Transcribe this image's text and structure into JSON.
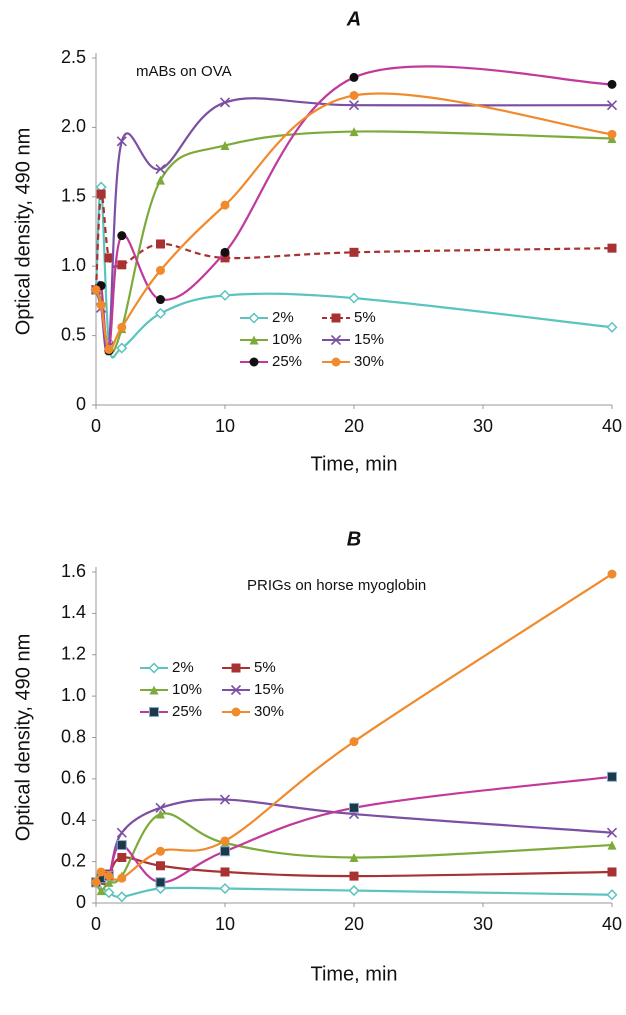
{
  "chart_data": [
    {
      "type": "line",
      "title": "A",
      "annotation": "mABs on OVA",
      "x_label": "Time, min",
      "y_label": "Optical density, 490 nm",
      "x": [
        0,
        0.4,
        1,
        2,
        5,
        10,
        20,
        40
      ],
      "xlim": [
        0,
        40
      ],
      "xticks": [
        0,
        10,
        20,
        30,
        40
      ],
      "ylim": [
        0,
        2.5
      ],
      "yticks": [
        0,
        0.5,
        {
          "value": 1,
          "label": "1.0"
        },
        1.5,
        {
          "value": 2,
          "label": "2.0"
        },
        2.5
      ],
      "series": [
        {
          "name": "2%",
          "color": "#5bc4bf",
          "marker": "diamond",
          "values": [
            0.83,
            1.57,
            0.45,
            0.41,
            0.66,
            0.79,
            0.77,
            0.56
          ]
        },
        {
          "name": "5%",
          "color": "#a83232",
          "marker": "square",
          "dash": true,
          "values": [
            0.83,
            1.52,
            1.06,
            1.01,
            1.16,
            1.06,
            1.1,
            1.13
          ]
        },
        {
          "name": "10%",
          "color": "#7daa3a",
          "marker": "triangle",
          "values": [
            0.83,
            0.75,
            0.4,
            0.55,
            1.62,
            1.87,
            1.97,
            1.92
          ]
        },
        {
          "name": "15%",
          "color": "#7b4fa3",
          "marker": "x",
          "values": [
            0.83,
            0.7,
            0.42,
            1.9,
            1.7,
            2.18,
            2.16,
            2.16
          ]
        },
        {
          "name": "25%",
          "color": "#c0399b",
          "marker": "circle-black",
          "values": [
            0.83,
            0.86,
            0.39,
            1.22,
            0.76,
            1.1,
            2.36,
            2.31
          ]
        },
        {
          "name": "30%",
          "color": "#f08a2c",
          "marker": "circle",
          "values": [
            0.83,
            0.72,
            0.4,
            0.56,
            0.97,
            1.44,
            2.23,
            1.95
          ]
        }
      ]
    },
    {
      "type": "line",
      "title": "B",
      "annotation": "PRIGs on horse myoglobin",
      "x_label": "Time, min",
      "y_label": "Optical density, 490 nm",
      "x": [
        0,
        0.4,
        1,
        2,
        5,
        10,
        20,
        40
      ],
      "xlim": [
        0,
        40
      ],
      "xticks": [
        0,
        10,
        20,
        30,
        40
      ],
      "ylim": [
        0,
        1.6
      ],
      "yticks": [
        0,
        0.2,
        0.4,
        0.6,
        0.8,
        {
          "value": 1,
          "label": "1.0"
        },
        1.2,
        1.4,
        1.6
      ],
      "series": [
        {
          "name": "2%",
          "color": "#5bc4bf",
          "marker": "diamond",
          "values": [
            0.1,
            0.08,
            0.05,
            0.03,
            0.07,
            0.07,
            0.06,
            0.04
          ]
        },
        {
          "name": "5%",
          "color": "#a83232",
          "marker": "square",
          "values": [
            0.1,
            0.11,
            0.14,
            0.22,
            0.18,
            0.15,
            0.13,
            0.15
          ]
        },
        {
          "name": "10%",
          "color": "#7daa3a",
          "marker": "triangle",
          "values": [
            0.1,
            0.06,
            0.1,
            0.13,
            0.43,
            0.29,
            0.22,
            0.28
          ]
        },
        {
          "name": "15%",
          "color": "#7b4fa3",
          "marker": "x",
          "values": [
            0.1,
            0.12,
            0.13,
            0.34,
            0.46,
            0.5,
            0.43,
            0.34
          ]
        },
        {
          "name": "25%",
          "color": "#c0399b",
          "marker": "square-black",
          "values": [
            0.1,
            0.12,
            0.13,
            0.28,
            0.1,
            0.25,
            0.46,
            0.61
          ]
        },
        {
          "name": "30%",
          "color": "#f08a2c",
          "marker": "circle",
          "values": [
            0.1,
            0.15,
            0.13,
            0.12,
            0.25,
            0.3,
            0.78,
            1.59
          ]
        }
      ]
    }
  ]
}
